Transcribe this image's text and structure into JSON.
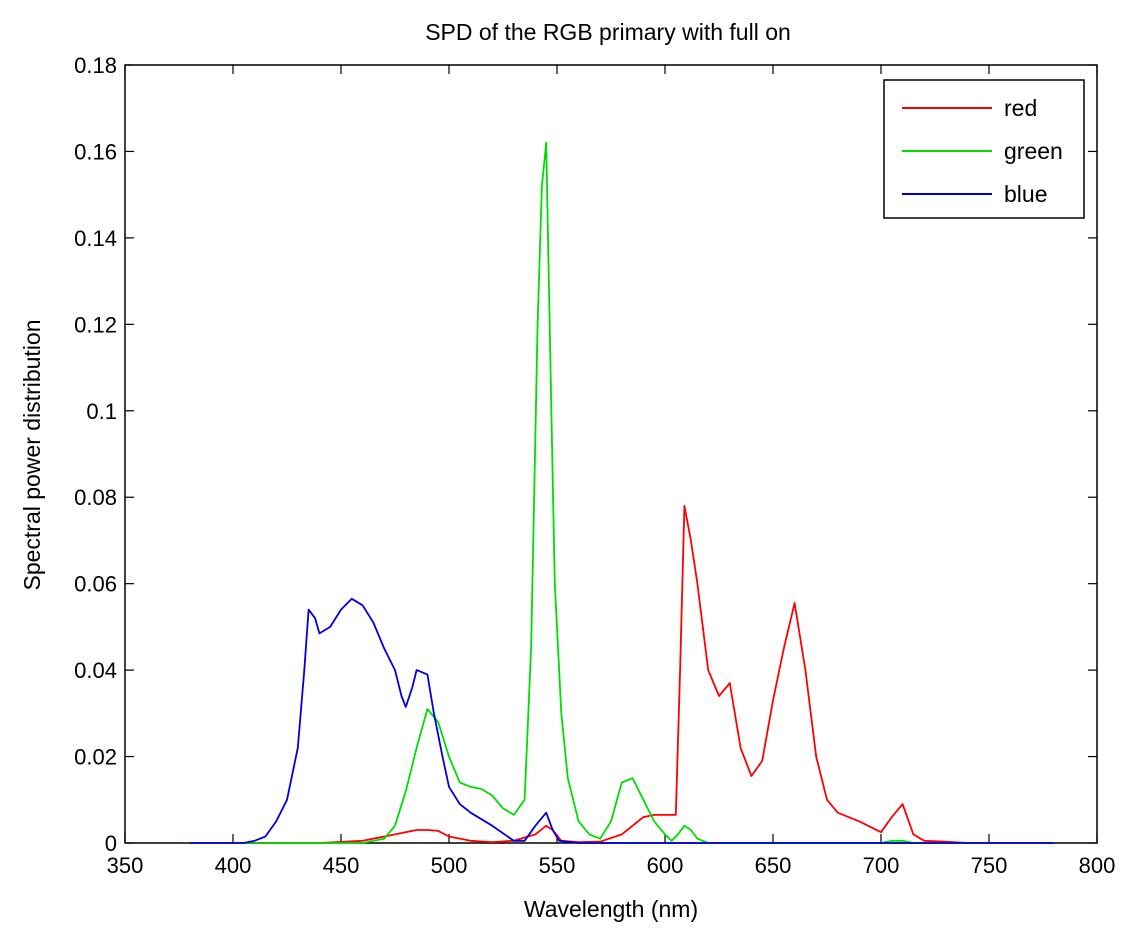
{
  "chart_data": {
    "type": "line",
    "title": "SPD of the RGB primary with full on",
    "xlabel": "Wavelength (nm)",
    "ylabel": "Spectral power distribution",
    "xlim": [
      350,
      800
    ],
    "ylim": [
      0,
      0.18
    ],
    "xticks": [
      "350",
      "400",
      "450",
      "500",
      "550",
      "600",
      "650",
      "700",
      "750",
      "800"
    ],
    "yticks": [
      "0",
      "0.02",
      "0.04",
      "0.06",
      "0.08",
      "0.1",
      "0.12",
      "0.14",
      "0.16",
      "0.18"
    ],
    "grid": false,
    "legend_position": "top-right",
    "series": [
      {
        "name": "red",
        "color": "#ff0000",
        "points": [
          [
            380,
            0
          ],
          [
            440,
            0
          ],
          [
            460,
            0.0005
          ],
          [
            475,
            0.002
          ],
          [
            485,
            0.003
          ],
          [
            490,
            0.003
          ],
          [
            495,
            0.0028
          ],
          [
            500,
            0.0015
          ],
          [
            510,
            0.0005
          ],
          [
            520,
            0.0002
          ],
          [
            530,
            0.0005
          ],
          [
            540,
            0.002
          ],
          [
            545,
            0.004
          ],
          [
            548,
            0.003
          ],
          [
            552,
            0.0005
          ],
          [
            560,
            0.0002
          ],
          [
            570,
            0.0003
          ],
          [
            580,
            0.002
          ],
          [
            585,
            0.004
          ],
          [
            590,
            0.006
          ],
          [
            595,
            0.0065
          ],
          [
            600,
            0.0065
          ],
          [
            605,
            0.0065
          ],
          [
            607,
            0.04
          ],
          [
            609,
            0.078
          ],
          [
            612,
            0.07
          ],
          [
            615,
            0.06
          ],
          [
            620,
            0.04
          ],
          [
            625,
            0.034
          ],
          [
            630,
            0.037
          ],
          [
            635,
            0.022
          ],
          [
            640,
            0.0155
          ],
          [
            645,
            0.019
          ],
          [
            650,
            0.033
          ],
          [
            655,
            0.045
          ],
          [
            660,
            0.0555
          ],
          [
            665,
            0.04
          ],
          [
            670,
            0.02
          ],
          [
            675,
            0.01
          ],
          [
            680,
            0.007
          ],
          [
            690,
            0.005
          ],
          [
            700,
            0.0025
          ],
          [
            705,
            0.006
          ],
          [
            710,
            0.009
          ],
          [
            715,
            0.002
          ],
          [
            720,
            0.0005
          ],
          [
            730,
            0.0003
          ],
          [
            740,
            0
          ],
          [
            780,
            0
          ]
        ]
      },
      {
        "name": "green",
        "color": "#00dd00",
        "points": [
          [
            380,
            0
          ],
          [
            460,
            0
          ],
          [
            470,
            0.001
          ],
          [
            475,
            0.004
          ],
          [
            480,
            0.012
          ],
          [
            485,
            0.022
          ],
          [
            490,
            0.031
          ],
          [
            495,
            0.028
          ],
          [
            500,
            0.02
          ],
          [
            505,
            0.014
          ],
          [
            510,
            0.013
          ],
          [
            515,
            0.0125
          ],
          [
            520,
            0.011
          ],
          [
            525,
            0.008
          ],
          [
            530,
            0.0065
          ],
          [
            535,
            0.01
          ],
          [
            538,
            0.045
          ],
          [
            541,
            0.12
          ],
          [
            543,
            0.152
          ],
          [
            545,
            0.162
          ],
          [
            547,
            0.11
          ],
          [
            549,
            0.06
          ],
          [
            552,
            0.03
          ],
          [
            555,
            0.015
          ],
          [
            560,
            0.005
          ],
          [
            565,
            0.002
          ],
          [
            570,
            0.001
          ],
          [
            575,
            0.005
          ],
          [
            580,
            0.014
          ],
          [
            585,
            0.015
          ],
          [
            590,
            0.01
          ],
          [
            595,
            0.005
          ],
          [
            600,
            0.002
          ],
          [
            603,
            0.0005
          ],
          [
            606,
            0.002
          ],
          [
            609,
            0.004
          ],
          [
            612,
            0.003
          ],
          [
            615,
            0.001
          ],
          [
            620,
            0
          ],
          [
            700,
            0
          ],
          [
            705,
            0.0005
          ],
          [
            710,
            0.0005
          ],
          [
            715,
            0
          ],
          [
            780,
            0
          ]
        ]
      },
      {
        "name": "blue",
        "color": "#0000dd",
        "points": [
          [
            380,
            0
          ],
          [
            405,
            0
          ],
          [
            410,
            0.0005
          ],
          [
            415,
            0.0015
          ],
          [
            420,
            0.005
          ],
          [
            425,
            0.01
          ],
          [
            430,
            0.022
          ],
          [
            433,
            0.04
          ],
          [
            435,
            0.054
          ],
          [
            438,
            0.052
          ],
          [
            440,
            0.0485
          ],
          [
            445,
            0.05
          ],
          [
            450,
            0.054
          ],
          [
            455,
            0.0565
          ],
          [
            460,
            0.055
          ],
          [
            465,
            0.051
          ],
          [
            470,
            0.045
          ],
          [
            475,
            0.04
          ],
          [
            478,
            0.034
          ],
          [
            480,
            0.0315
          ],
          [
            483,
            0.036
          ],
          [
            485,
            0.04
          ],
          [
            490,
            0.039
          ],
          [
            493,
            0.03
          ],
          [
            497,
            0.02
          ],
          [
            500,
            0.013
          ],
          [
            505,
            0.009
          ],
          [
            510,
            0.007
          ],
          [
            520,
            0.004
          ],
          [
            530,
            0.0005
          ],
          [
            535,
            0.0005
          ],
          [
            540,
            0.004
          ],
          [
            545,
            0.007
          ],
          [
            548,
            0.003
          ],
          [
            551,
            0.0005
          ],
          [
            560,
            0
          ],
          [
            780,
            0
          ]
        ]
      }
    ]
  }
}
